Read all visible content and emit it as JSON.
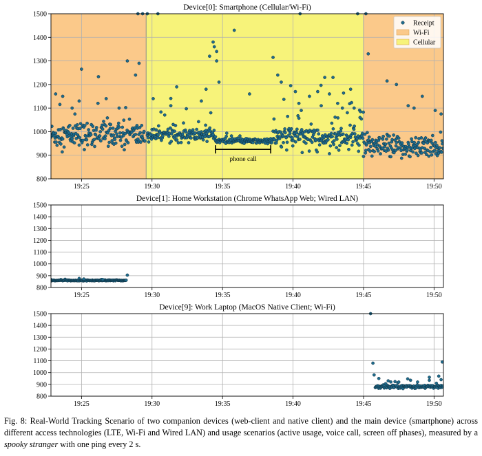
{
  "caption": {
    "before": "Fig. 8: Real-World Tracking Scenario of two companion devices (web-client and native client) and the main device (smartphone) across different access technologies (LTE, Wi-Fi and Wired LAN) and usage scenarios (active usage, voice call, screen off phases), measured by a ",
    "emphasis": "spooky stranger",
    "after": " with one ping every 2 s."
  },
  "colors": {
    "point": "#1f6b8c",
    "point_edge": "#0e2f3f",
    "wifi": "#fbc98a",
    "cellular": "#f7f37a",
    "grid": "#b0b0b0"
  },
  "chart_data": [
    {
      "type": "scatter",
      "title": "Device[0]: Smartphone (Cellular/Wi-Fi)",
      "xlim": [
        "19:22:50",
        "19:50:40"
      ],
      "ylim": [
        800,
        1500
      ],
      "x_ticks": [
        "19:25",
        "19:30",
        "19:35",
        "19:40",
        "19:45",
        "19:50"
      ],
      "y_ticks": [
        800,
        900,
        1000,
        1100,
        1200,
        1300,
        1400,
        1500
      ],
      "grid": true,
      "legend": {
        "position": "top-right",
        "entries": [
          {
            "label": "Receipt",
            "kind": "marker"
          },
          {
            "label": "Wi-Fi",
            "kind": "patch",
            "color": "#fbc98a"
          },
          {
            "label": "Cellular",
            "kind": "patch",
            "color": "#f7f37a"
          }
        ]
      },
      "regions": [
        {
          "name": "Wi-Fi",
          "start": "19:22:50",
          "end": "19:29:35"
        },
        {
          "name": "Cellular",
          "start": "19:29:35",
          "end": "19:45:00"
        },
        {
          "name": "Wi-Fi",
          "start": "19:45:00",
          "end": "19:50:40"
        }
      ],
      "annotations": [
        {
          "text": "phone call",
          "start": "19:34:30",
          "end": "19:38:25",
          "y": 925
        }
      ],
      "series": [
        {
          "name": "Receipt",
          "segments": [
            {
              "start": "19:22:50",
              "end": "19:29:30",
              "median": 985,
              "spread": 45,
              "outlier_rate": 0.06
            },
            {
              "start": "19:29:40",
              "end": "19:34:30",
              "median": 985,
              "spread": 22,
              "outlier_rate": 0.08
            },
            {
              "start": "19:34:30",
              "end": "19:38:25",
              "median": 960,
              "spread": 9,
              "outlier_rate": 0.03
            },
            {
              "start": "19:38:25",
              "end": "19:45:00",
              "median": 975,
              "spread": 40,
              "outlier_rate": 0.14
            },
            {
              "start": "19:45:00",
              "end": "19:50:40",
              "median": 935,
              "spread": 38,
              "outlier_rate": 0.05
            }
          ],
          "points": [
            [
              "19:23:10",
              1160
            ],
            [
              "19:23:40",
              1150
            ],
            [
              "19:24:20",
              1100
            ],
            [
              "19:24:50",
              1130
            ],
            [
              "19:25:00",
              1265
            ],
            [
              "19:26:45",
              1140
            ],
            [
              "19:27:40",
              1100
            ],
            [
              "19:28:15",
              1300
            ],
            [
              "19:28:50",
              1240
            ],
            [
              "19:29:05",
              1290
            ],
            [
              "19:29:00",
              1500
            ],
            [
              "19:29:20",
              1500
            ],
            [
              "19:29:40",
              1500
            ],
            [
              "19:30:05",
              1140
            ],
            [
              "19:30:25",
              1500
            ],
            [
              "19:31:20",
              1110
            ],
            [
              "19:31:45",
              1190
            ],
            [
              "19:33:30",
              1130
            ],
            [
              "19:33:50",
              1180
            ],
            [
              "19:34:05",
              1320
            ],
            [
              "19:34:20",
              1380
            ],
            [
              "19:34:25",
              1360
            ],
            [
              "19:34:35",
              1340
            ],
            [
              "19:34:35",
              1300
            ],
            [
              "19:34:45",
              1210
            ],
            [
              "19:35:50",
              1430
            ],
            [
              "19:36:55",
              1160
            ],
            [
              "19:38:35",
              1315
            ],
            [
              "19:38:55",
              1240
            ],
            [
              "19:39:10",
              1210
            ],
            [
              "19:39:50",
              1195
            ],
            [
              "19:40:10",
              1170
            ],
            [
              "19:40:25",
              1120
            ],
            [
              "19:40:30",
              1500
            ],
            [
              "19:40:35",
              1090
            ],
            [
              "19:41:10",
              1150
            ],
            [
              "19:41:45",
              1170
            ],
            [
              "19:42:00",
              1110
            ],
            [
              "19:42:15",
              1230
            ],
            [
              "19:42:35",
              1160
            ],
            [
              "19:42:50",
              1230
            ],
            [
              "19:43:10",
              1120
            ],
            [
              "19:43:30",
              1100
            ],
            [
              "19:44:05",
              1180
            ],
            [
              "19:44:20",
              1100
            ],
            [
              "19:44:45",
              1060
            ],
            [
              "19:44:35",
              1500
            ],
            [
              "19:45:10",
              1500
            ],
            [
              "19:45:20",
              1330
            ],
            [
              "19:46:40",
              1215
            ],
            [
              "19:47:20",
              1200
            ],
            [
              "19:48:10",
              1110
            ],
            [
              "19:48:35",
              1100
            ],
            [
              "19:49:10",
              1150
            ],
            [
              "19:50:05",
              1090
            ],
            [
              "19:50:30",
              1075
            ]
          ]
        }
      ]
    },
    {
      "type": "scatter",
      "title": "Device[1]: Home Workstation (Chrome WhatsApp Web; Wired LAN)",
      "xlim": [
        "19:22:50",
        "19:50:40"
      ],
      "ylim": [
        800,
        1500
      ],
      "x_ticks": [
        "19:25",
        "19:30",
        "19:35",
        "19:40",
        "19:45",
        "19:50"
      ],
      "y_ticks": [
        800,
        900,
        1000,
        1100,
        1200,
        1300,
        1400,
        1500
      ],
      "grid": true,
      "series": [
        {
          "name": "Receipt",
          "segments": [
            {
              "start": "19:22:50",
              "end": "19:28:10",
              "median": 860,
              "spread": 3,
              "outlier_rate": 0.02
            }
          ],
          "points": [
            [
              "19:28:15",
              905
            ],
            [
              "19:25:10",
              872
            ],
            [
              "19:26:30",
              868
            ]
          ]
        }
      ]
    },
    {
      "type": "scatter",
      "title": "Device[9]: Work Laptop (MacOS Native Client; Wi-Fi)",
      "xlim": [
        "19:22:50",
        "19:50:40"
      ],
      "ylim": [
        800,
        1500
      ],
      "x_ticks": [
        "19:25",
        "19:30",
        "19:35",
        "19:40",
        "19:45",
        "19:50"
      ],
      "y_ticks": [
        800,
        900,
        1000,
        1100,
        1200,
        1300,
        1400,
        1500
      ],
      "grid": true,
      "series": [
        {
          "name": "Receipt",
          "segments": [
            {
              "start": "19:45:50",
              "end": "19:50:40",
              "median": 880,
              "spread": 12,
              "outlier_rate": 0.12
            }
          ],
          "points": [
            [
              "19:45:30",
              1500
            ],
            [
              "19:45:40",
              1080
            ],
            [
              "19:45:45",
              980
            ],
            [
              "19:46:05",
              950
            ],
            [
              "19:46:45",
              930
            ],
            [
              "19:47:30",
              920
            ],
            [
              "19:48:20",
              935
            ],
            [
              "19:49:40",
              960
            ],
            [
              "19:50:20",
              970
            ],
            [
              "19:50:35",
              1090
            ],
            [
              "19:50:30",
              940
            ]
          ]
        }
      ]
    }
  ]
}
